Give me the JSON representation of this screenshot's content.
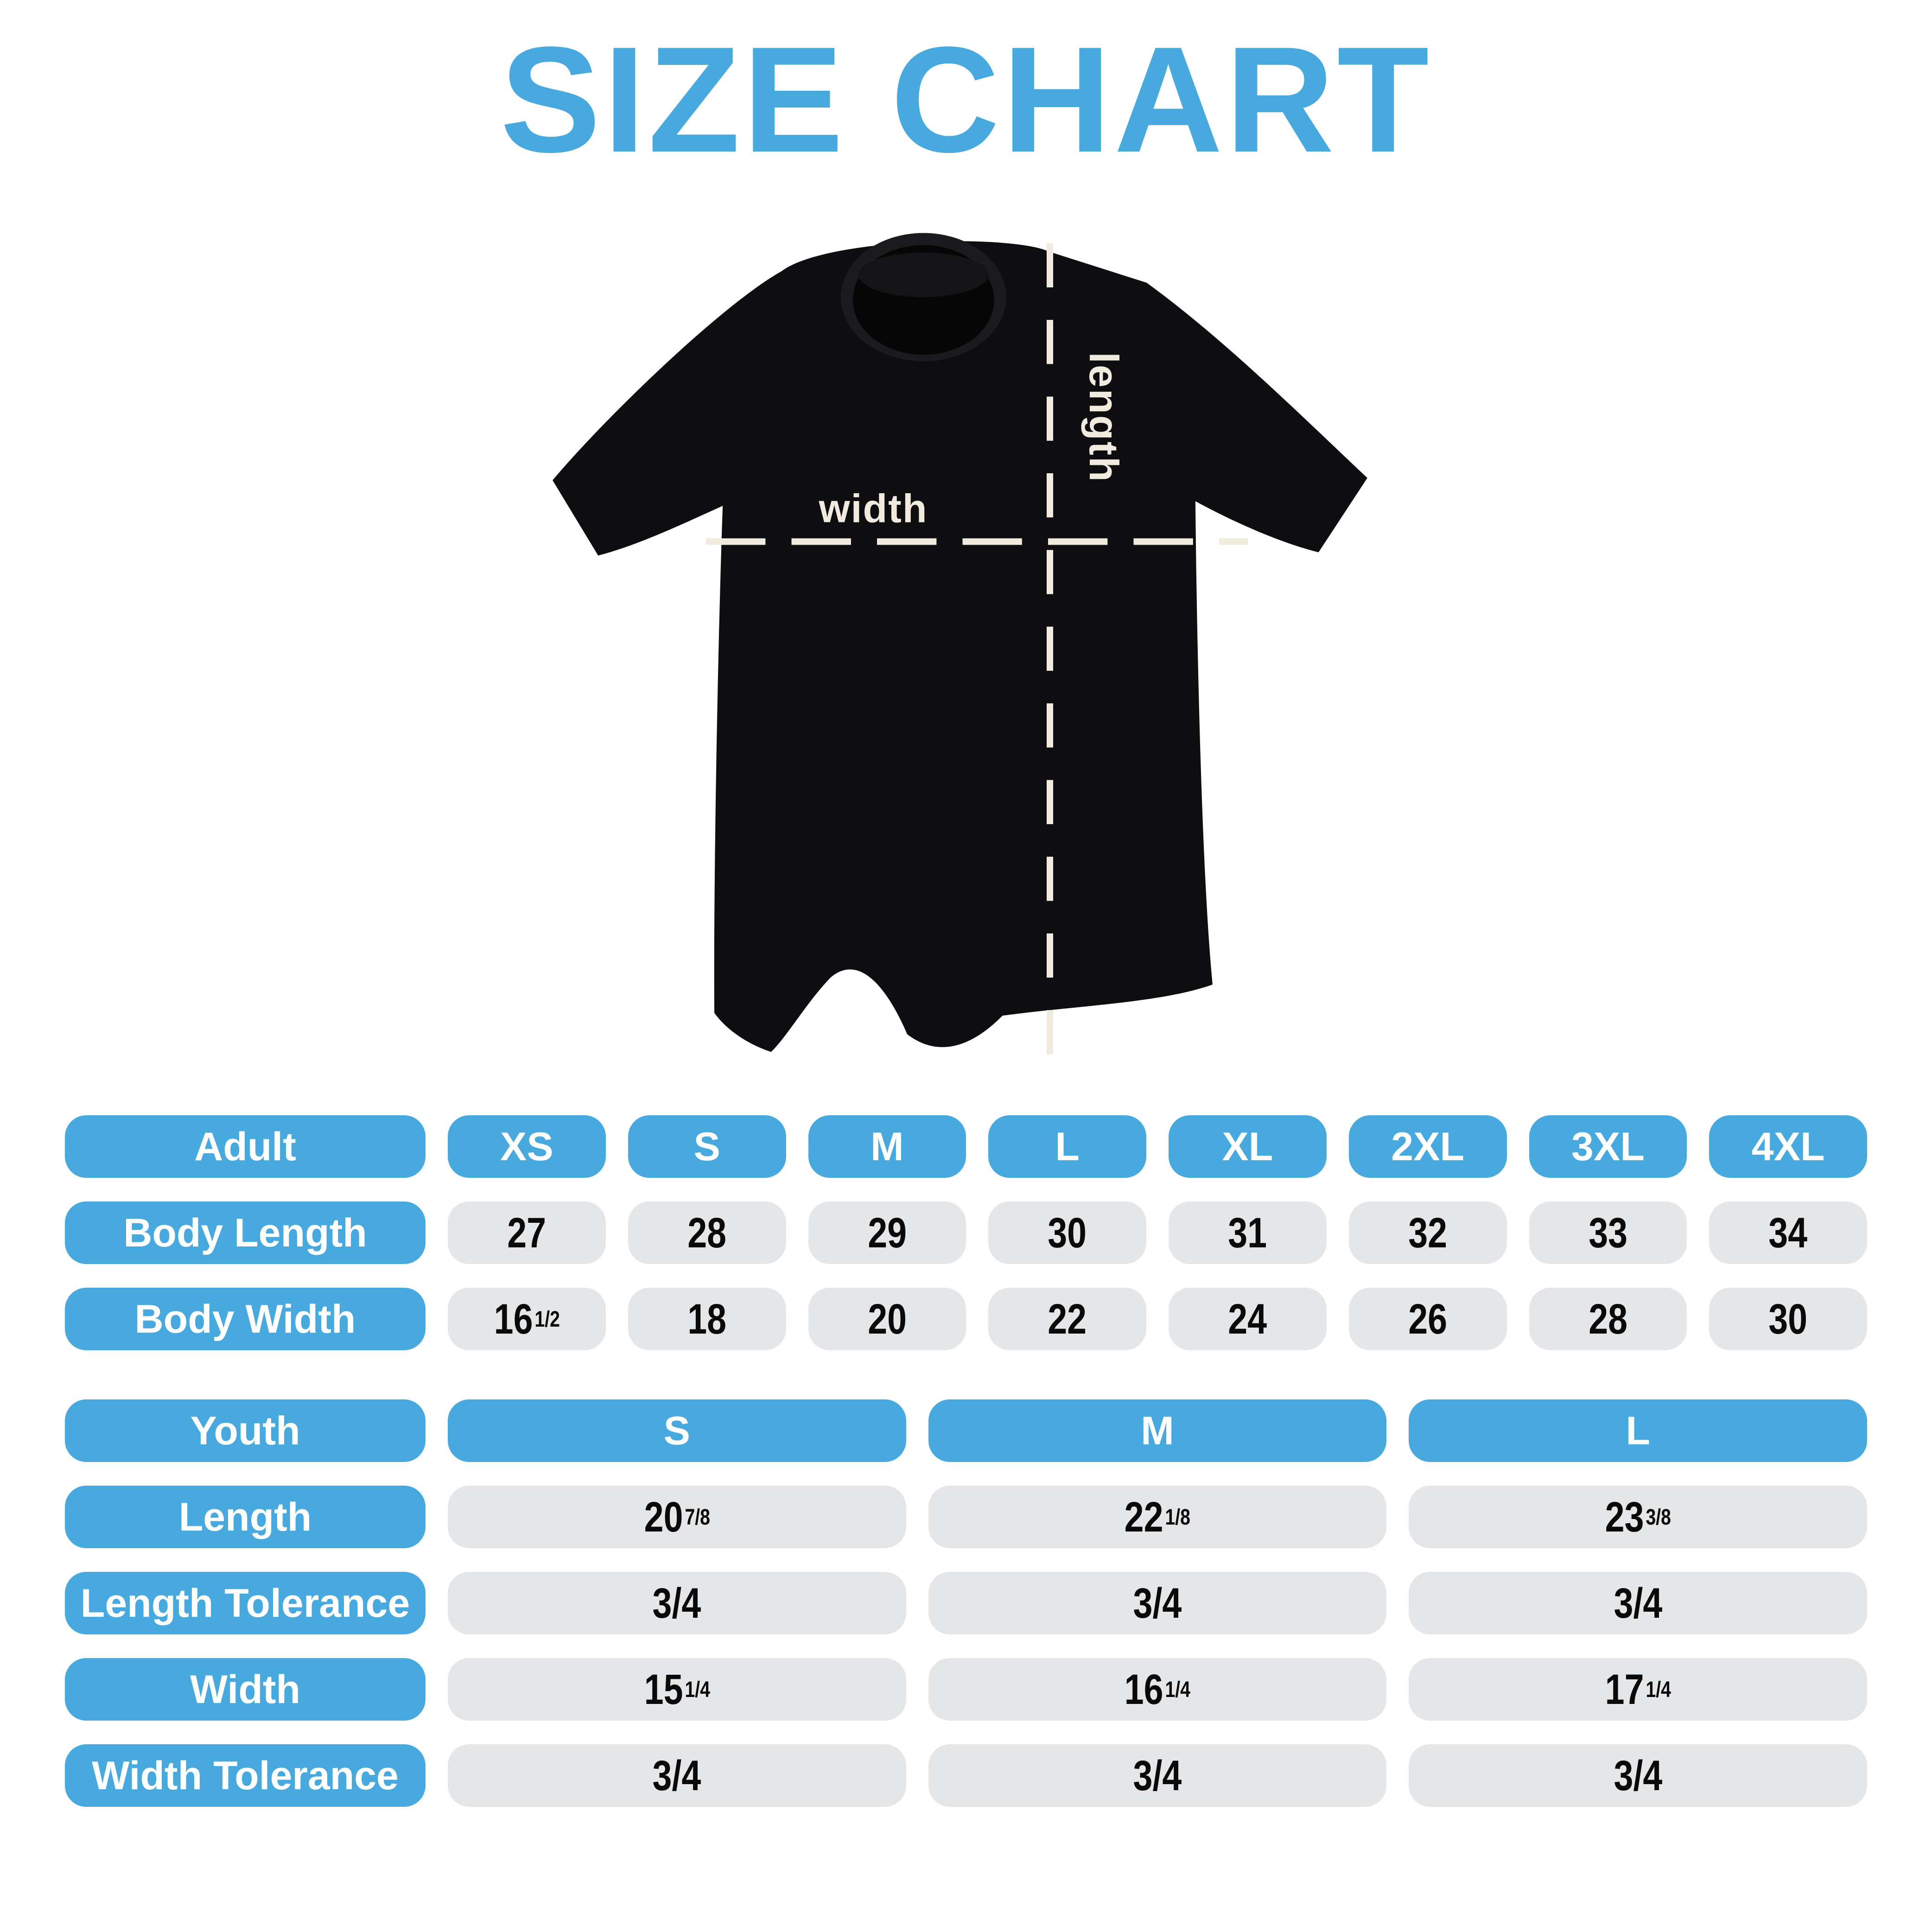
{
  "page_title": "SIZE CHART",
  "colors": {
    "accent_blue": "#47A9DE",
    "pill_gray": "#E4E6E7",
    "dash_cream": "#F0EADF",
    "number_black": "#0A0A0A",
    "shirt_black": "#0E0E10",
    "background": "#FFFFFF"
  },
  "shirt": {
    "width_label": "width",
    "length_label": "length"
  },
  "chart_data": [
    {
      "type": "table",
      "name": "adult",
      "header_label": "Adult",
      "sizes": [
        "XS",
        "S",
        "M",
        "L",
        "XL",
        "2XL",
        "3XL",
        "4XL"
      ],
      "rows": [
        {
          "label": "Body Length",
          "values": [
            "27",
            "28",
            "29",
            "30",
            "31",
            "32",
            "33",
            "34"
          ]
        },
        {
          "label": "Body Width",
          "values": [
            "16 1/2",
            "18",
            "20",
            "22",
            "24",
            "26",
            "28",
            "30"
          ]
        }
      ]
    },
    {
      "type": "table",
      "name": "youth",
      "header_label": "Youth",
      "sizes": [
        "S",
        "M",
        "L"
      ],
      "rows": [
        {
          "label": "Length",
          "values": [
            "20 7/8",
            "22 1/8",
            "23 3/8"
          ]
        },
        {
          "label": "Length Tolerance",
          "values": [
            "3/4",
            "3/4",
            "3/4"
          ]
        },
        {
          "label": "Width",
          "values": [
            "15 1/4",
            "16 1/4",
            "17 1/4"
          ]
        },
        {
          "label": "Width Tolerance",
          "values": [
            "3/4",
            "3/4",
            "3/4"
          ]
        }
      ]
    }
  ]
}
